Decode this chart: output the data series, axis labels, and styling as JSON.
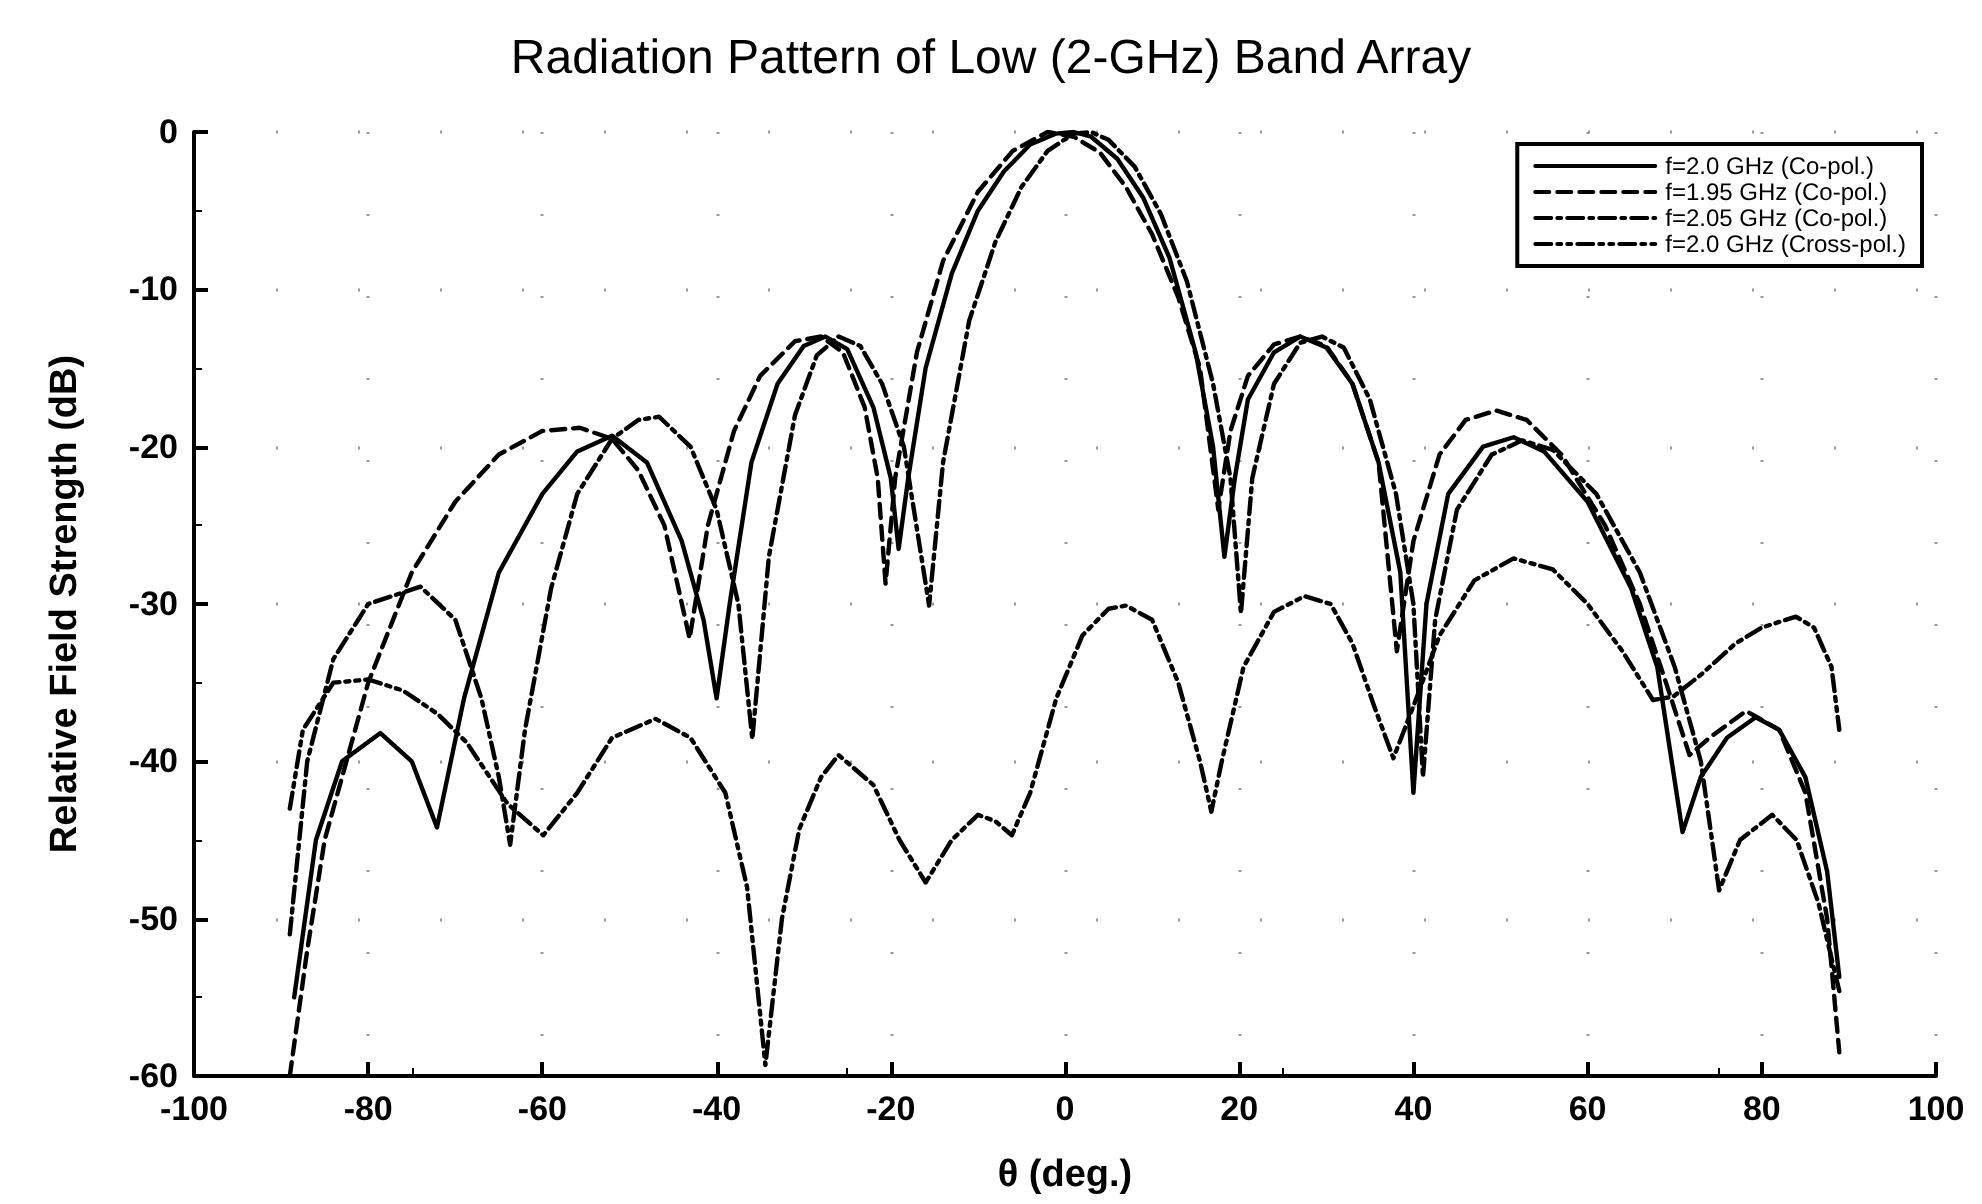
{
  "chart_data": {
    "type": "line",
    "title": "Radiation Pattern of Low (2-GHz) Band Array",
    "xlabel": "θ (deg.)",
    "ylabel": "Relative Field Strength (dB)",
    "xlim": [
      -100,
      100
    ],
    "xticks": [
      -100,
      -80,
      -60,
      -40,
      -20,
      0,
      20,
      40,
      60,
      80,
      100
    ],
    "ylim": [
      -60,
      0
    ],
    "yticks": [
      -60,
      -50,
      -40,
      -30,
      -20,
      -10,
      0
    ],
    "grid": true,
    "legend": "top right",
    "marker": "none",
    "series": [
      {
        "name": "f=2.0 GHz (Co-pol.)",
        "color": "#000000",
        "line_style": "solid",
        "x": [
          -88.5,
          -86,
          -83,
          -78.6,
          -75,
          -72.1,
          -69,
          -65,
          -60,
          -56,
          -52,
          -48,
          -44,
          -41.5,
          -40,
          -38.5,
          -36,
          -33,
          -30,
          -27.5,
          -25,
          -22,
          -20,
          -19.1,
          -18,
          -16,
          -13,
          -10,
          -7,
          -4,
          -1,
          1,
          3,
          6,
          9,
          12,
          15,
          17,
          18.3,
          19.5,
          21,
          24,
          27,
          30,
          33,
          36,
          38.5,
          40,
          41.5,
          44,
          48,
          51.5,
          55,
          60,
          65,
          68,
          70.9,
          73,
          76,
          79.3,
          82,
          85,
          87.5,
          88.9
        ],
        "values": [
          -55,
          -45,
          -40,
          -38.2,
          -40,
          -44.2,
          -36,
          -28,
          -23,
          -20.3,
          -19.3,
          -21,
          -26,
          -31,
          -36,
          -30,
          -21,
          -16,
          -13.6,
          -13,
          -13.8,
          -17.5,
          -22,
          -26.5,
          -22,
          -15,
          -9,
          -5,
          -2.5,
          -0.8,
          -0.1,
          0,
          -0.3,
          -1.7,
          -4.2,
          -8,
          -14,
          -20,
          -27,
          -22,
          -17,
          -14,
          -13,
          -13.7,
          -16,
          -21,
          -28,
          -42,
          -30,
          -23,
          -20,
          -19.4,
          -20.3,
          -23.5,
          -29,
          -34,
          -44.5,
          -41,
          -38.5,
          -37.2,
          -38,
          -41,
          -47,
          -53.7
        ]
      },
      {
        "name": "f=1.95 GHz (Co-pol.)",
        "color": "#000000",
        "line_style": "dashed",
        "x": [
          -89,
          -87,
          -85,
          -80,
          -75,
          -70,
          -65,
          -60,
          -55.7,
          -52,
          -49,
          -46,
          -43.1,
          -41,
          -38,
          -35,
          -31,
          -28,
          -25.5,
          -23,
          -21.5,
          -20.6,
          -19.5,
          -17,
          -14,
          -10,
          -6,
          -2,
          1,
          4,
          7,
          10,
          13,
          15.5,
          17.6,
          19,
          21,
          24,
          27,
          30,
          33,
          36,
          38.1,
          40,
          43,
          46,
          49.5,
          53,
          57,
          62,
          66,
          69,
          71.7,
          74,
          78.2,
          82,
          85,
          87.5,
          88.9
        ],
        "values": [
          -60,
          -52,
          -45,
          -35,
          -28,
          -23.5,
          -20.5,
          -19,
          -18.8,
          -19.5,
          -21.5,
          -25,
          -32.2,
          -25,
          -19,
          -15.5,
          -13.3,
          -13,
          -14,
          -17.5,
          -22,
          -28.7,
          -22,
          -14,
          -8.2,
          -3.8,
          -1.2,
          0,
          -0.3,
          -1.3,
          -3.5,
          -6.5,
          -10.5,
          -15,
          -24,
          -19,
          -15.5,
          -13.5,
          -13,
          -13.6,
          -16,
          -21,
          -33,
          -26,
          -20.5,
          -18.3,
          -17.7,
          -18.3,
          -20.5,
          -25,
          -30,
          -35,
          -39.6,
          -38.5,
          -36.8,
          -38,
          -42,
          -50,
          -58.5
        ]
      },
      {
        "name": "f=2.05 GHz (Co-pol.)",
        "color": "#000000",
        "line_style": "dashdot",
        "x": [
          -89,
          -87,
          -84,
          -80,
          -74,
          -70,
          -67,
          -65,
          -63.7,
          -62,
          -59,
          -56,
          -52,
          -49,
          -46.6,
          -43,
          -40,
          -37.5,
          -35.9,
          -34,
          -31,
          -28.5,
          -26,
          -23.5,
          -21,
          -18.5,
          -15.6,
          -14,
          -11,
          -8,
          -5,
          -2,
          1,
          3,
          5,
          8,
          11,
          14,
          17,
          19,
          20.2,
          21.5,
          24,
          27,
          29.5,
          32,
          35,
          38,
          40,
          41.1,
          42.5,
          45,
          49,
          52.5,
          56,
          61,
          66,
          70,
          73,
          75.1,
          77.5,
          81.2,
          84,
          86.5,
          88.9
        ],
        "values": [
          -51,
          -40,
          -33.5,
          -30,
          -28.9,
          -31,
          -36,
          -41,
          -45.3,
          -38,
          -29,
          -23,
          -19.5,
          -18.3,
          -18.1,
          -20,
          -24,
          -30,
          -38.6,
          -27,
          -18,
          -14.2,
          -13,
          -13.6,
          -16,
          -20,
          -30.1,
          -21,
          -12,
          -7,
          -3.5,
          -1.2,
          -0.1,
          0,
          -0.5,
          -2.2,
          -5.2,
          -9.5,
          -16,
          -22,
          -30.6,
          -22,
          -16,
          -13.4,
          -13,
          -13.7,
          -17,
          -23,
          -30,
          -41,
          -31,
          -24,
          -20.5,
          -19.6,
          -20.2,
          -23,
          -28,
          -34,
          -40,
          -48.2,
          -45,
          -43.4,
          -45,
          -49,
          -54.6
        ]
      },
      {
        "name": "f=2.0 GHz (Cross-pol.)",
        "color": "#000000",
        "line_style": "dashdotdot",
        "x": [
          -89,
          -87.5,
          -84,
          -80,
          -76,
          -72,
          -68.7,
          -64,
          -59.9,
          -56,
          -52,
          -47,
          -43,
          -39,
          -36.5,
          -34.4,
          -32.5,
          -30.5,
          -28,
          -26,
          -22,
          -19,
          -16,
          -13,
          -10,
          -8,
          -6.1,
          -4,
          -1,
          2,
          5,
          7,
          10,
          13,
          15.5,
          16.8,
          18,
          20.5,
          24,
          27.5,
          30.5,
          33,
          35.5,
          37.7,
          40,
          43,
          47,
          51.5,
          56,
          60,
          64,
          67.5,
          69.8,
          73,
          77,
          80,
          83.9,
          86,
          88,
          88.9
        ],
        "values": [
          -43,
          -38,
          -35,
          -34.8,
          -35.5,
          -37,
          -38.8,
          -42.7,
          -44.7,
          -42,
          -38.5,
          -37.3,
          -38.5,
          -42,
          -48,
          -59.3,
          -50,
          -44.3,
          -41,
          -39.6,
          -41.5,
          -45,
          -47.7,
          -45,
          -43.4,
          -43.8,
          -44.7,
          -42,
          -36,
          -32,
          -30.3,
          -30.1,
          -31,
          -35,
          -40,
          -43.2,
          -40,
          -34,
          -30.5,
          -29.5,
          -30,
          -32.5,
          -36.5,
          -39.8,
          -36.5,
          -32,
          -28.5,
          -27.1,
          -27.8,
          -30,
          -33,
          -36.1,
          -35.9,
          -34.5,
          -32.5,
          -31.5,
          -30.8,
          -31.5,
          -34,
          -38
        ]
      }
    ]
  }
}
